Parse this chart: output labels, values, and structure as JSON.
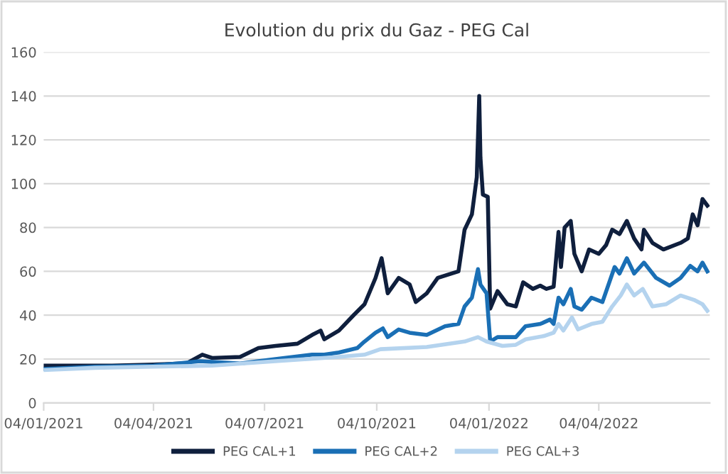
{
  "chart_data": {
    "type": "line",
    "title": "Evolution du prix du Gaz - PEG Cal",
    "xlim": [
      "2021-01-04",
      "2022-07-04"
    ],
    "xticks": [
      {
        "value": "2021-01-04",
        "label": "04/01/2021"
      },
      {
        "value": "2021-04-04",
        "label": "04/04/2021"
      },
      {
        "value": "2021-07-04",
        "label": "04/07/2021"
      },
      {
        "value": "2021-10-04",
        "label": "04/10/2021"
      },
      {
        "value": "2022-01-04",
        "label": "04/01/2022"
      },
      {
        "value": "2022-04-04",
        "label": "04/04/2022"
      }
    ],
    "ylim": [
      0,
      160
    ],
    "yticks": [
      0,
      20,
      40,
      60,
      80,
      100,
      120,
      140,
      160
    ],
    "grid": "y",
    "legend": "bottom",
    "marker": "none",
    "line_style": "solid",
    "series": [
      {
        "name": "PEG CAL+1",
        "color": "#0f1f3d",
        "x": [
          "2021-01-04",
          "2021-02-01",
          "2021-03-01",
          "2021-04-04",
          "2021-05-01",
          "2021-05-14",
          "2021-05-22",
          "2021-06-14",
          "2021-06-29",
          "2021-07-13",
          "2021-07-31",
          "2021-08-12",
          "2021-08-19",
          "2021-08-22",
          "2021-09-03",
          "2021-09-15",
          "2021-09-24",
          "2021-10-03",
          "2021-10-08",
          "2021-10-13",
          "2021-10-22",
          "2021-10-31",
          "2021-11-05",
          "2021-11-14",
          "2021-11-23",
          "2021-12-10",
          "2021-12-15",
          "2021-12-21",
          "2021-12-25",
          "2021-12-27",
          "2021-12-28",
          "2021-12-30",
          "2022-01-03",
          "2022-01-05",
          "2022-01-11",
          "2022-01-19",
          "2022-01-26",
          "2022-02-01",
          "2022-02-09",
          "2022-02-15",
          "2022-02-20",
          "2022-02-26",
          "2022-03-02",
          "2022-03-04",
          "2022-03-07",
          "2022-03-12",
          "2022-03-15",
          "2022-03-21",
          "2022-03-27",
          "2022-04-04",
          "2022-04-10",
          "2022-04-15",
          "2022-04-21",
          "2022-04-27",
          "2022-05-03",
          "2022-05-09",
          "2022-05-11",
          "2022-05-18",
          "2022-05-27",
          "2022-06-10",
          "2022-06-16",
          "2022-06-20",
          "2022-06-24",
          "2022-06-28",
          "2022-07-02"
        ],
        "values": [
          17,
          17,
          17,
          17.5,
          18,
          22,
          20.5,
          21,
          25,
          26,
          27,
          31,
          33,
          29,
          33,
          40,
          45,
          57,
          66,
          50,
          57,
          54,
          46,
          50,
          57,
          60,
          79,
          86,
          103,
          140,
          112,
          95,
          94,
          43,
          51,
          45,
          44,
          55,
          52,
          53.5,
          52,
          53,
          78,
          62,
          80,
          83,
          68,
          60,
          70,
          68,
          72,
          79,
          77,
          83,
          75,
          70,
          79,
          73,
          70,
          73,
          75,
          86,
          81,
          93,
          90
        ]
      },
      {
        "name": "PEG CAL+2",
        "color": "#1a6fb5",
        "x": [
          "2021-01-04",
          "2021-02-15",
          "2021-04-04",
          "2021-05-12",
          "2021-06-14",
          "2021-07-13",
          "2021-08-12",
          "2021-08-22",
          "2021-09-03",
          "2021-09-18",
          "2021-09-24",
          "2021-10-03",
          "2021-10-09",
          "2021-10-13",
          "2021-10-22",
          "2021-10-31",
          "2021-11-14",
          "2021-11-29",
          "2021-12-10",
          "2021-12-15",
          "2021-12-21",
          "2021-12-26",
          "2021-12-28",
          "2022-01-02",
          "2022-01-05",
          "2022-01-11",
          "2022-01-26",
          "2022-02-03",
          "2022-02-15",
          "2022-02-23",
          "2022-02-26",
          "2022-03-02",
          "2022-03-06",
          "2022-03-12",
          "2022-03-15",
          "2022-03-21",
          "2022-03-29",
          "2022-04-07",
          "2022-04-17",
          "2022-04-21",
          "2022-04-27",
          "2022-05-03",
          "2022-05-11",
          "2022-05-21",
          "2022-06-01",
          "2022-06-10",
          "2022-06-18",
          "2022-06-24",
          "2022-06-28",
          "2022-07-02"
        ],
        "values": [
          15.5,
          16.5,
          17,
          19,
          18,
          20,
          22,
          22,
          23,
          25,
          28,
          32,
          34,
          30,
          33.5,
          32,
          31,
          35,
          36,
          44,
          48,
          61,
          54,
          50,
          28,
          30,
          30,
          35,
          36,
          38,
          36,
          48,
          45,
          52,
          44,
          42.5,
          48,
          46,
          62,
          59,
          66,
          59,
          64,
          57,
          53.5,
          57,
          62.5,
          60,
          64,
          60
        ]
      },
      {
        "name": "PEG CAL+3",
        "color": "#b4d3ee",
        "x": [
          "2021-01-04",
          "2021-02-15",
          "2021-04-04",
          "2021-05-22",
          "2021-07-13",
          "2021-09-03",
          "2021-09-24",
          "2021-10-07",
          "2021-11-14",
          "2021-12-15",
          "2021-12-26",
          "2022-01-02",
          "2022-01-15",
          "2022-01-26",
          "2022-02-03",
          "2022-02-18",
          "2022-02-26",
          "2022-03-02",
          "2022-03-06",
          "2022-03-13",
          "2022-03-18",
          "2022-03-29",
          "2022-04-07",
          "2022-04-15",
          "2022-04-22",
          "2022-04-27",
          "2022-05-03",
          "2022-05-10",
          "2022-05-18",
          "2022-05-29",
          "2022-06-10",
          "2022-06-21",
          "2022-06-28",
          "2022-07-02"
        ],
        "values": [
          15,
          16,
          16.5,
          17,
          19,
          21,
          22,
          24.5,
          25.5,
          28,
          30,
          28,
          26,
          26.5,
          29,
          30.5,
          32,
          36,
          33,
          39,
          33.5,
          36,
          37,
          44,
          49,
          54,
          49,
          52,
          44,
          45,
          49,
          47,
          45,
          42
        ]
      }
    ]
  }
}
